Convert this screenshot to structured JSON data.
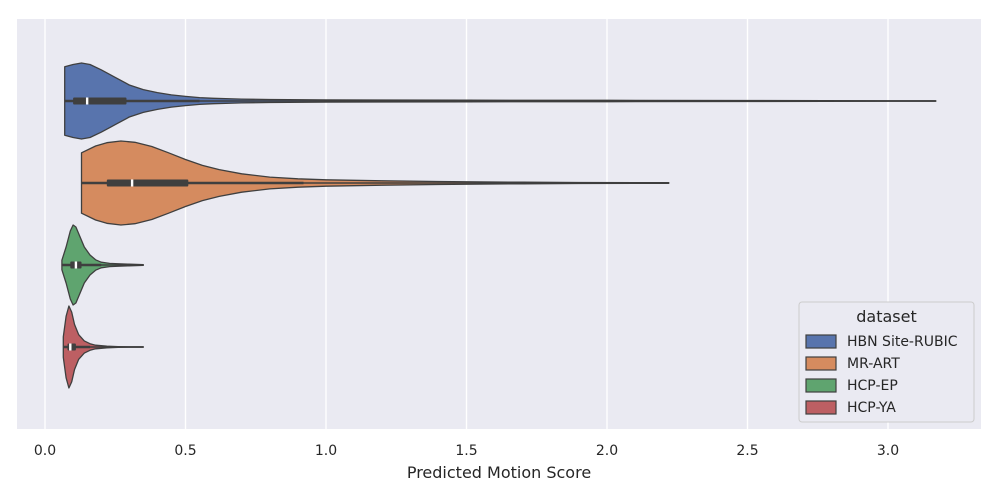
{
  "chart_data": {
    "type": "violin",
    "orientation": "horizontal",
    "xlabel": "Predicted Motion Score",
    "ylabel": "",
    "xlim": [
      -0.1,
      3.35
    ],
    "xticks": [
      0.0,
      0.5,
      1.0,
      1.5,
      2.0,
      2.5,
      3.0
    ],
    "xtick_labels": [
      "0.0",
      "0.5",
      "1.0",
      "1.5",
      "2.0",
      "2.5",
      "3.0"
    ],
    "grid": true,
    "background": "#eaeaf2",
    "legend": {
      "title": "dataset",
      "placement": "bottom-right",
      "entries": [
        "HBN Site-RUBIC",
        "MR-ART",
        "HCP-EP",
        "HCP-YA"
      ]
    },
    "series": [
      {
        "name": "HBN Site-RUBIC",
        "color": "#5874ad",
        "min": 0.07,
        "q1": 0.1,
        "median": 0.15,
        "q3": 0.29,
        "max": 3.17,
        "whisker_hi": 0.55,
        "density": [
          [
            0.07,
            0.9
          ],
          [
            0.1,
            0.96
          ],
          [
            0.13,
            1.0
          ],
          [
            0.16,
            0.96
          ],
          [
            0.2,
            0.82
          ],
          [
            0.25,
            0.62
          ],
          [
            0.3,
            0.42
          ],
          [
            0.35,
            0.3
          ],
          [
            0.4,
            0.22
          ],
          [
            0.45,
            0.16
          ],
          [
            0.5,
            0.12
          ],
          [
            0.55,
            0.09
          ],
          [
            0.6,
            0.07
          ],
          [
            0.7,
            0.05
          ],
          [
            0.8,
            0.04
          ],
          [
            1.0,
            0.03
          ],
          [
            1.2,
            0.025
          ],
          [
            1.5,
            0.02
          ],
          [
            2.0,
            0.018
          ],
          [
            2.5,
            0.012
          ],
          [
            3.0,
            0.006
          ],
          [
            3.17,
            0.004
          ]
        ]
      },
      {
        "name": "MR-ART",
        "color": "#d58b5f",
        "min": 0.13,
        "q1": 0.22,
        "median": 0.31,
        "q3": 0.51,
        "max": 2.22,
        "whisker_hi": 0.92,
        "density": [
          [
            0.13,
            0.72
          ],
          [
            0.18,
            0.88
          ],
          [
            0.22,
            0.96
          ],
          [
            0.27,
            1.0
          ],
          [
            0.32,
            0.97
          ],
          [
            0.38,
            0.87
          ],
          [
            0.44,
            0.72
          ],
          [
            0.5,
            0.56
          ],
          [
            0.56,
            0.42
          ],
          [
            0.62,
            0.32
          ],
          [
            0.7,
            0.22
          ],
          [
            0.8,
            0.14
          ],
          [
            0.9,
            0.1
          ],
          [
            1.0,
            0.075
          ],
          [
            1.2,
            0.052
          ],
          [
            1.4,
            0.035
          ],
          [
            1.55,
            0.025
          ],
          [
            1.7,
            0.018
          ],
          [
            1.9,
            0.013
          ],
          [
            2.1,
            0.009
          ],
          [
            2.22,
            0.006
          ]
        ]
      },
      {
        "name": "HCP-EP",
        "color": "#5fa46f",
        "min": 0.06,
        "q1": 0.09,
        "median": 0.11,
        "q3": 0.13,
        "max": 0.35,
        "whisker_hi": 0.2,
        "density": [
          [
            0.06,
            0.12
          ],
          [
            0.075,
            0.45
          ],
          [
            0.09,
            0.85
          ],
          [
            0.1,
            1.0
          ],
          [
            0.11,
            0.95
          ],
          [
            0.125,
            0.7
          ],
          [
            0.14,
            0.45
          ],
          [
            0.16,
            0.25
          ],
          [
            0.18,
            0.13
          ],
          [
            0.2,
            0.07
          ],
          [
            0.23,
            0.04
          ],
          [
            0.26,
            0.03
          ],
          [
            0.3,
            0.02
          ],
          [
            0.35,
            0.01
          ]
        ]
      },
      {
        "name": "HCP-YA",
        "color": "#bd5f63",
        "min": 0.065,
        "q1": 0.08,
        "median": 0.09,
        "q3": 0.11,
        "max": 0.35,
        "whisker_hi": 0.16,
        "density": [
          [
            0.065,
            0.25
          ],
          [
            0.075,
            0.75
          ],
          [
            0.085,
            1.0
          ],
          [
            0.095,
            0.85
          ],
          [
            0.105,
            0.55
          ],
          [
            0.12,
            0.3
          ],
          [
            0.14,
            0.15
          ],
          [
            0.16,
            0.08
          ],
          [
            0.18,
            0.045
          ],
          [
            0.22,
            0.02
          ],
          [
            0.26,
            0.01
          ],
          [
            0.3,
            0.006
          ],
          [
            0.35,
            0.004
          ]
        ]
      }
    ]
  }
}
